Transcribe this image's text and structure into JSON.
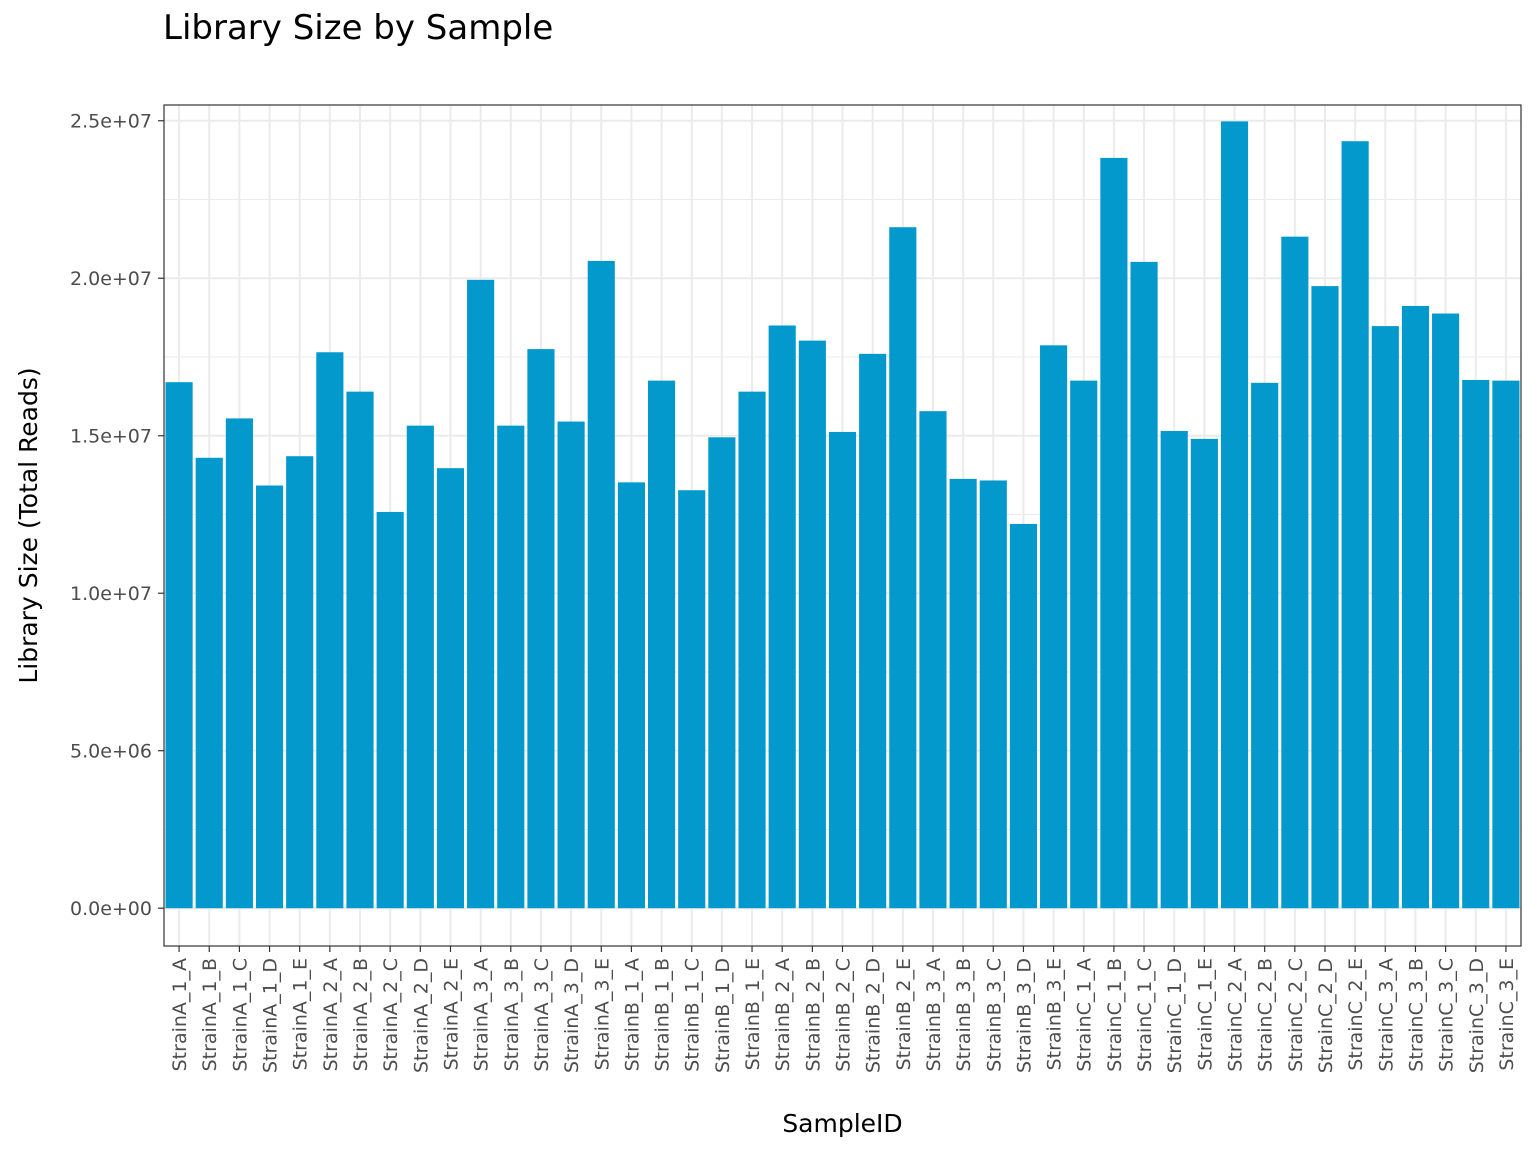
{
  "chart_data": {
    "type": "bar",
    "title": "Library Size by Sample",
    "xlabel": "SampleID",
    "ylabel": "Library Size (Total Reads)",
    "ylim": [
      -1200000,
      25500000
    ],
    "yticks": [
      0,
      5000000,
      10000000,
      15000000,
      20000000,
      25000000
    ],
    "ytick_labels": [
      "0.0e+00",
      "5.0e+06",
      "1.0e+07",
      "1.5e+07",
      "2.0e+07",
      "2.5e+07"
    ],
    "grid": true,
    "bar_color": "#0399CC",
    "categories": [
      "StrainA_1_A",
      "StrainA_1_B",
      "StrainA_1_C",
      "StrainA_1_D",
      "StrainA_1_E",
      "StrainA_2_A",
      "StrainA_2_B",
      "StrainA_2_C",
      "StrainA_2_D",
      "StrainA_2_E",
      "StrainA_3_A",
      "StrainA_3_B",
      "StrainA_3_C",
      "StrainA_3_D",
      "StrainA_3_E",
      "StrainB_1_A",
      "StrainB_1_B",
      "StrainB_1_C",
      "StrainB_1_D",
      "StrainB_1_E",
      "StrainB_2_A",
      "StrainB_2_B",
      "StrainB_2_C",
      "StrainB_2_D",
      "StrainB_2_E",
      "StrainB_3_A",
      "StrainB_3_B",
      "StrainB_3_C",
      "StrainB_3_D",
      "StrainB_3_E",
      "StrainC_1_A",
      "StrainC_1_B",
      "StrainC_1_C",
      "StrainC_1_D",
      "StrainC_1_E",
      "StrainC_2_A",
      "StrainC_2_B",
      "StrainC_2_C",
      "StrainC_2_D",
      "StrainC_2_E",
      "StrainC_3_A",
      "StrainC_3_B",
      "StrainC_3_C",
      "StrainC_3_D",
      "StrainC_3_E"
    ],
    "values": [
      16700000,
      14300000,
      15550000,
      13420000,
      14350000,
      17650000,
      16400000,
      12580000,
      15320000,
      13970000,
      19950000,
      15320000,
      17750000,
      15450000,
      20550000,
      13520000,
      16750000,
      13270000,
      14950000,
      16400000,
      18500000,
      18020000,
      15120000,
      17600000,
      21620000,
      15780000,
      13630000,
      13580000,
      12200000,
      17870000,
      16750000,
      23820000,
      20520000,
      15150000,
      14900000,
      24980000,
      16680000,
      21320000,
      19750000,
      24350000,
      18480000,
      19120000,
      18880000,
      16770000,
      16750000
    ]
  }
}
